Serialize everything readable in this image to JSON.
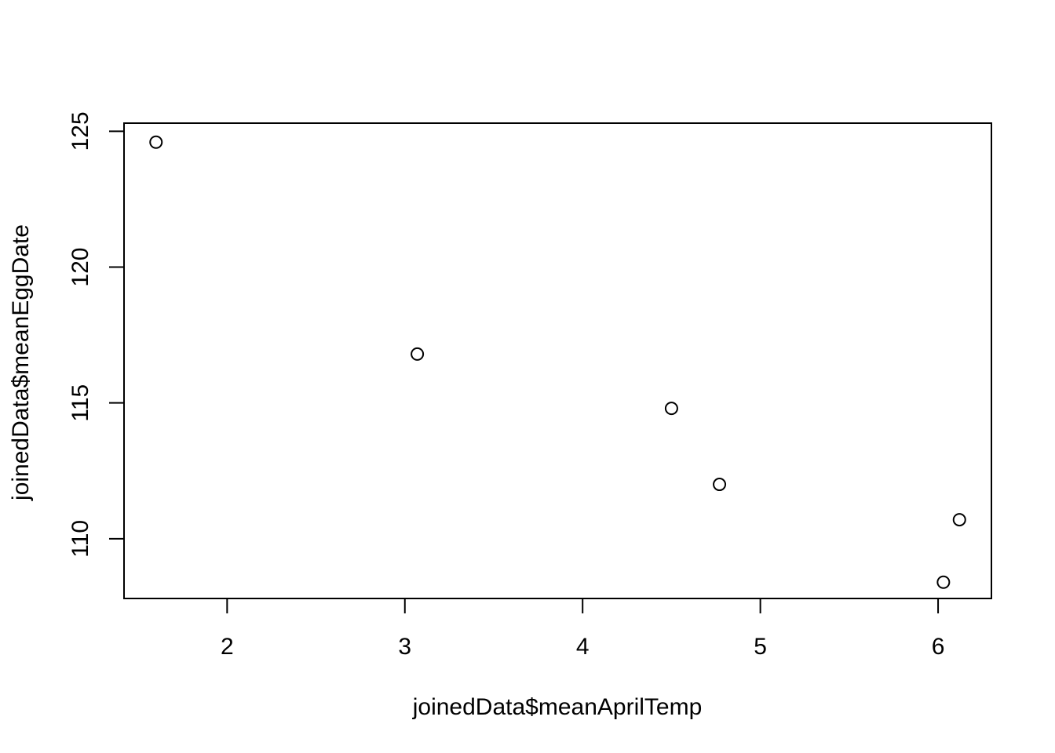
{
  "chart_data": {
    "type": "scatter",
    "xlabel": "joinedData$meanAprilTemp",
    "ylabel": "joinedData$meanEggDate",
    "xlim": [
      1.42,
      6.3
    ],
    "ylim": [
      107.8,
      125.3
    ],
    "x_ticks": [
      2,
      3,
      4,
      5,
      6
    ],
    "y_ticks": [
      110,
      115,
      120,
      125
    ],
    "grid": false,
    "marker": "open-circle",
    "series": [
      {
        "x": [
          1.6,
          3.07,
          4.5,
          4.77,
          6.03,
          6.12
        ],
        "y": [
          124.6,
          116.8,
          114.8,
          112.0,
          108.4,
          110.7
        ]
      }
    ]
  }
}
